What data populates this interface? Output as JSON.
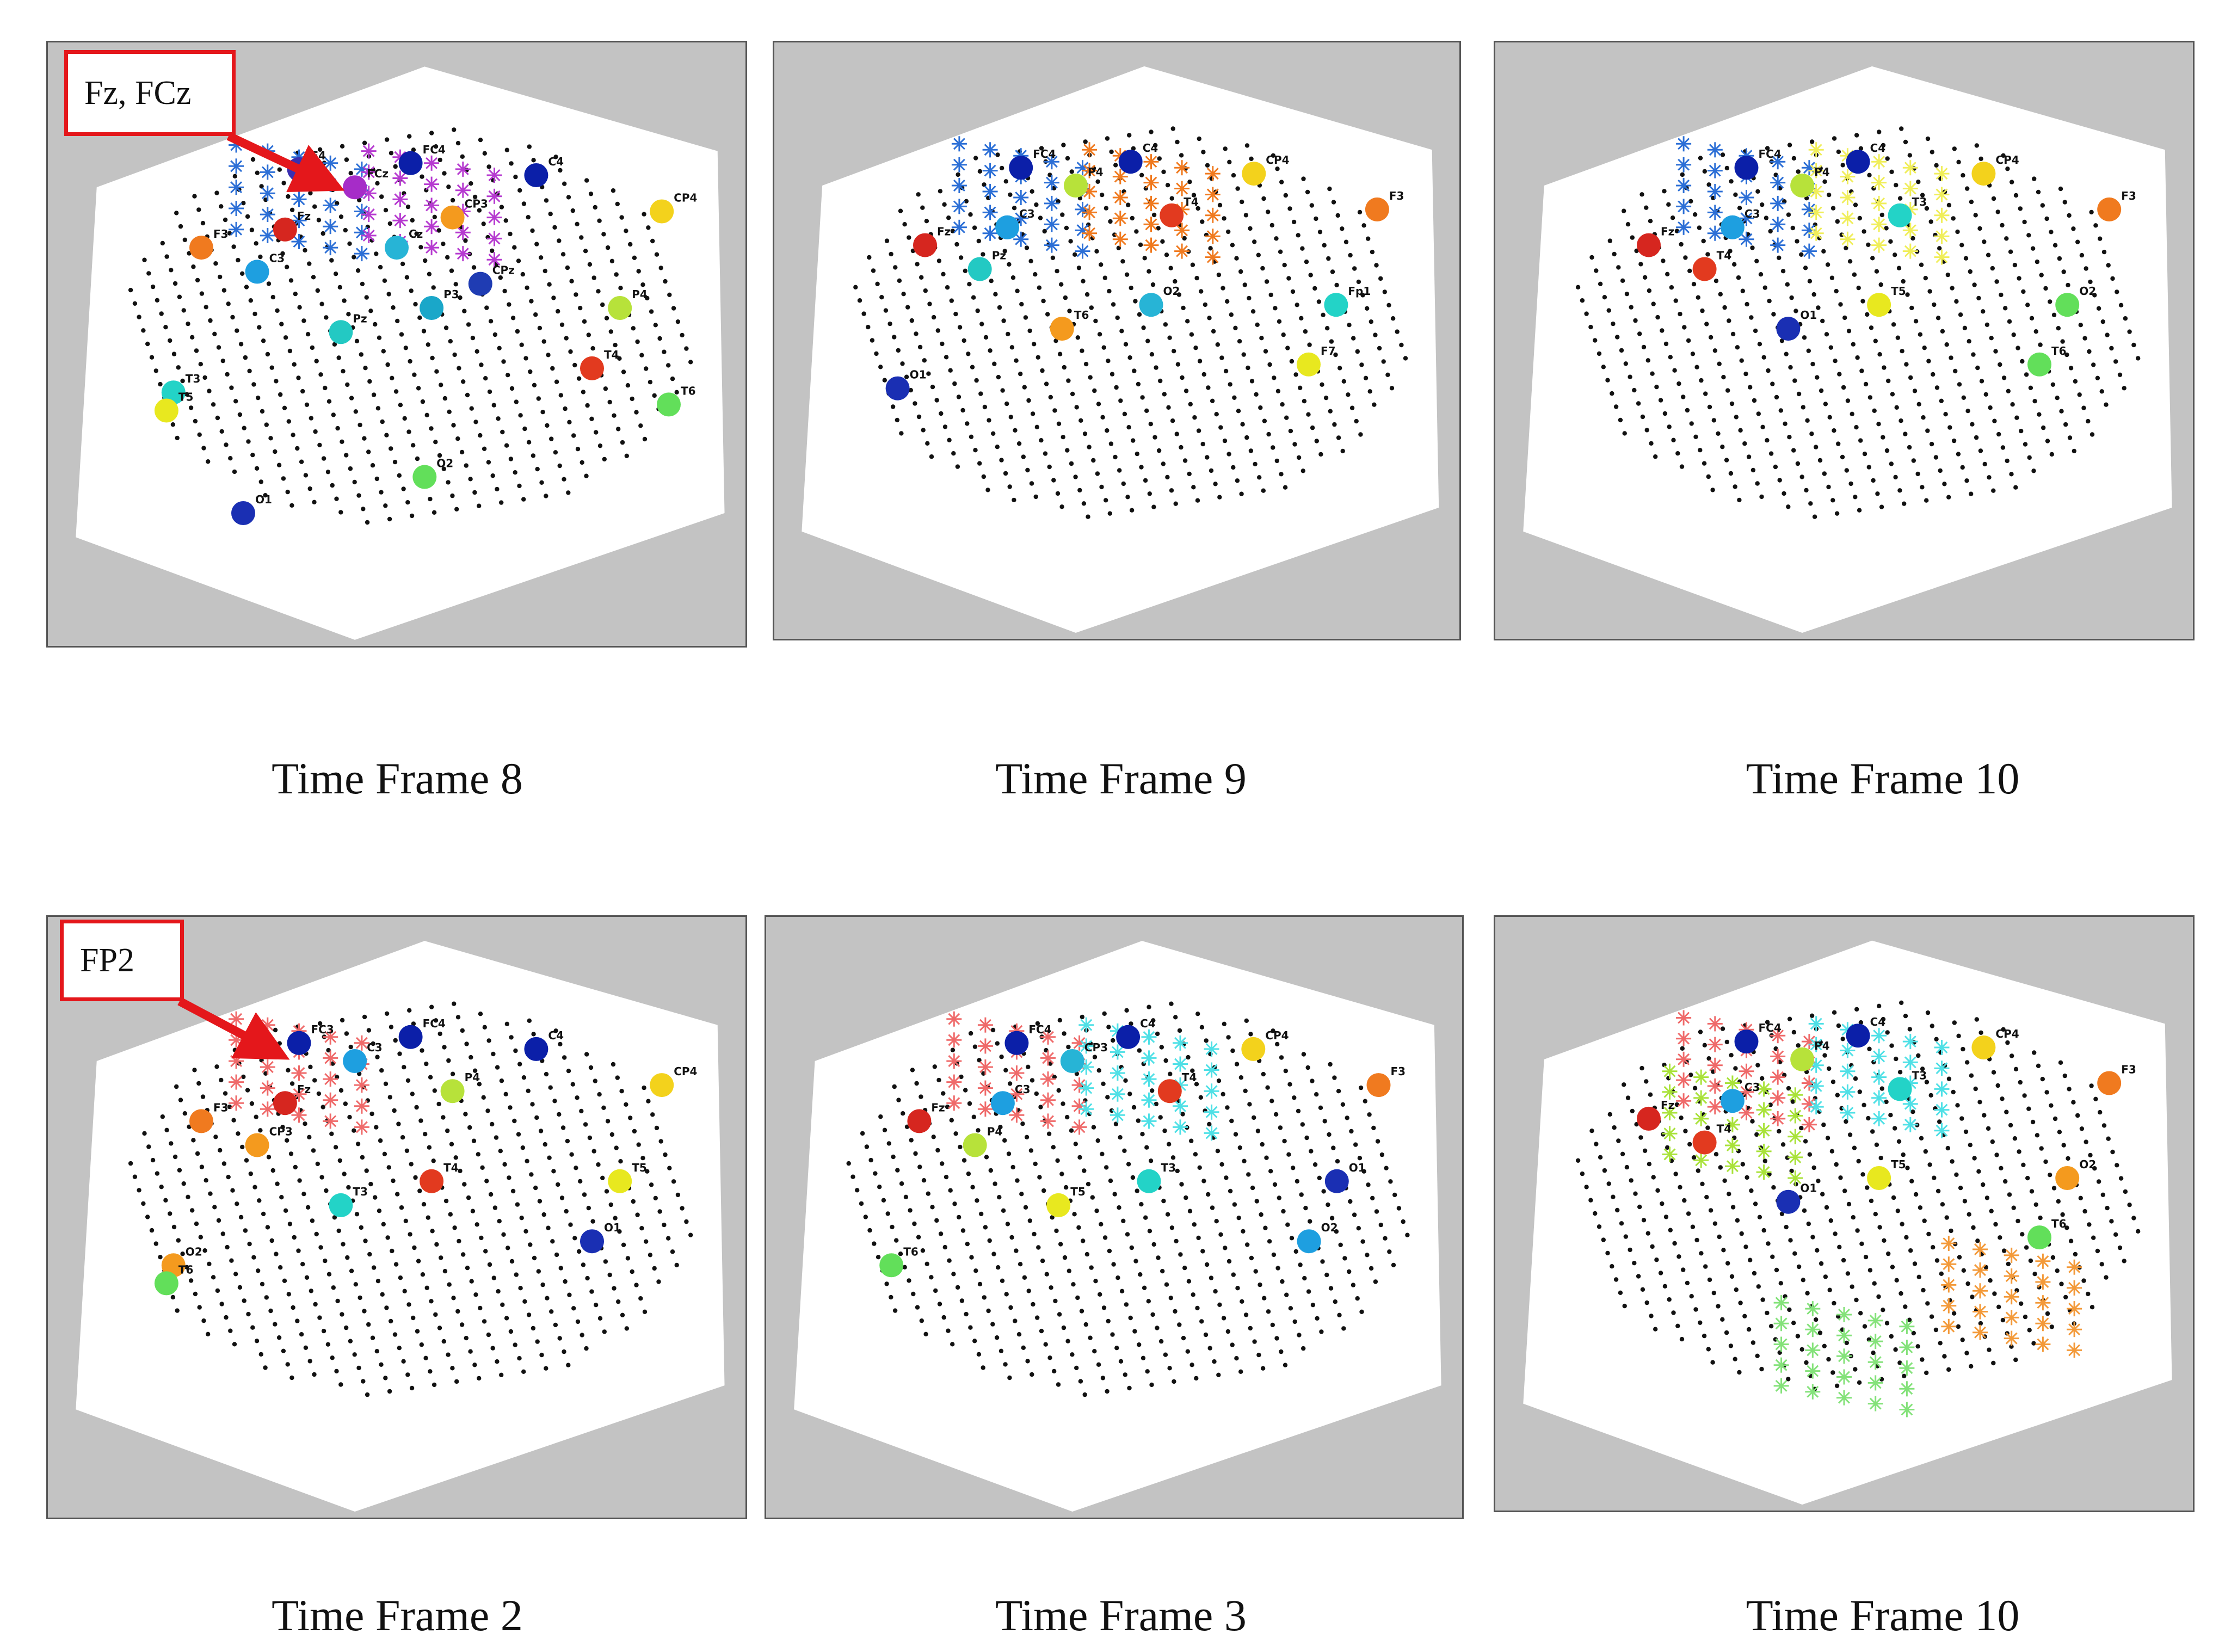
{
  "figure": {
    "captions": [
      "Time Frame 8",
      "Time Frame 9",
      "Time Frame 10",
      "Time Frame 2",
      "Time Frame 3",
      "Time Frame 10"
    ],
    "callouts": {
      "top_left": "Fz, FCz",
      "bottom_left": "FP2"
    },
    "arrow_color": "#e4171b",
    "background_panel_color": "#c3c3c3",
    "panels": [
      {
        "id": "top-1",
        "electrodes": [
          [
            "F4",
            "#3a2fb0"
          ],
          [
            "FC4",
            "#0b1fa8"
          ],
          [
            "C4",
            "#0b1fa8"
          ],
          [
            "CP4",
            "#f3d21c"
          ],
          [
            "F3",
            "#f07a1f"
          ],
          [
            "Fz",
            "#d6261f"
          ],
          [
            "FCz",
            "#a62cc8"
          ],
          [
            "C3",
            "#1e9fe0"
          ],
          [
            "CP3",
            "#f49a1e"
          ],
          [
            "P3",
            "#1aa7c9"
          ],
          [
            "Pz",
            "#23c9c3"
          ],
          [
            "P4",
            "#b7e23a"
          ],
          [
            "T4",
            "#e23a1f"
          ],
          [
            "T3",
            "#23d3c7"
          ],
          [
            "T5",
            "#e8e81f"
          ],
          [
            "O1",
            "#1a2fb3"
          ],
          [
            "O2",
            "#62df5a"
          ],
          [
            "Cz",
            "#27b4d6"
          ],
          [
            "T6",
            "#62df5a"
          ],
          [
            "CPz",
            "#1f3cb3"
          ]
        ],
        "clusters": [
          [
            "#2c6fd6"
          ],
          [
            "#b63ad0"
          ]
        ]
      },
      {
        "id": "top-2",
        "electrodes": [
          [
            "FC4",
            "#0b1fa8"
          ],
          [
            "C4",
            "#0b1fa8"
          ],
          [
            "CP4",
            "#f3d21c"
          ],
          [
            "F3",
            "#f07a1f"
          ],
          [
            "Fz",
            "#d6261f"
          ],
          [
            "C3",
            "#1e9fe0"
          ],
          [
            "P4",
            "#b7e23a"
          ],
          [
            "Pz",
            "#23c9c3"
          ],
          [
            "T4",
            "#e23a1f"
          ],
          [
            "O2",
            "#27b4d6"
          ],
          [
            "T6",
            "#f49a1e"
          ],
          [
            "Fp1",
            "#23d3c7"
          ],
          [
            "F7",
            "#e8e81f"
          ],
          [
            "O1",
            "#1a2fb3"
          ]
        ],
        "clusters": [
          [
            "#2c6fd6"
          ],
          [
            "#f07a1f"
          ]
        ]
      },
      {
        "id": "top-3",
        "electrodes": [
          [
            "FC4",
            "#0b1fa8"
          ],
          [
            "C4",
            "#0b1fa8"
          ],
          [
            "CP4",
            "#f3d21c"
          ],
          [
            "F3",
            "#f07a1f"
          ],
          [
            "Fz",
            "#d6261f"
          ],
          [
            "C3",
            "#1e9fe0"
          ],
          [
            "P4",
            "#b7e23a"
          ],
          [
            "T4",
            "#e23a1f"
          ],
          [
            "T3",
            "#23d3c7"
          ],
          [
            "T5",
            "#e8e81f"
          ],
          [
            "O1",
            "#1a2fb3"
          ],
          [
            "O2",
            "#62df5a"
          ],
          [
            "T6",
            "#62df5a"
          ]
        ],
        "clusters": [
          [
            "#2c6fd6"
          ],
          [
            "#f0ee5a"
          ]
        ]
      },
      {
        "id": "bottom-1",
        "electrodes": [
          [
            "FC3",
            "#0b1fa8"
          ],
          [
            "FC4",
            "#0b1fa8"
          ],
          [
            "C4",
            "#0b1fa8"
          ],
          [
            "CP4",
            "#f3d21c"
          ],
          [
            "F3",
            "#f07a1f"
          ],
          [
            "Fz",
            "#d6261f"
          ],
          [
            "C3",
            "#1e9fe0"
          ],
          [
            "CP3",
            "#f49a1e"
          ],
          [
            "P4",
            "#b7e23a"
          ],
          [
            "T4",
            "#e23a1f"
          ],
          [
            "T3",
            "#23d3c7"
          ],
          [
            "T5",
            "#e8e81f"
          ],
          [
            "O1",
            "#1a2fb3"
          ],
          [
            "O2",
            "#f49a1e"
          ],
          [
            "T6",
            "#62df5a"
          ]
        ],
        "clusters": [
          [
            "#ef6a6a"
          ]
        ]
      },
      {
        "id": "bottom-2",
        "electrodes": [
          [
            "FC4",
            "#0b1fa8"
          ],
          [
            "C4",
            "#0b1fa8"
          ],
          [
            "CP4",
            "#f3d21c"
          ],
          [
            "F3",
            "#f07a1f"
          ],
          [
            "Fz",
            "#d6261f"
          ],
          [
            "C3",
            "#1e9fe0"
          ],
          [
            "CP3",
            "#27b4d6"
          ],
          [
            "P4",
            "#b7e23a"
          ],
          [
            "T4",
            "#e23a1f"
          ],
          [
            "T3",
            "#23d3c7"
          ],
          [
            "T5",
            "#e8e81f"
          ],
          [
            "O1",
            "#1a2fb3"
          ],
          [
            "O2",
            "#1e9fe0"
          ],
          [
            "T6",
            "#62df5a"
          ]
        ],
        "clusters": [
          [
            "#ef6a6a"
          ],
          [
            "#4fe0e6"
          ]
        ]
      },
      {
        "id": "bottom-3",
        "electrodes": [
          [
            "FC4",
            "#0b1fa8"
          ],
          [
            "C4",
            "#0b1fa8"
          ],
          [
            "CP4",
            "#f3d21c"
          ],
          [
            "F3",
            "#f07a1f"
          ],
          [
            "Fz",
            "#d6261f"
          ],
          [
            "C3",
            "#1e9fe0"
          ],
          [
            "P4",
            "#b7e23a"
          ],
          [
            "T4",
            "#e23a1f"
          ],
          [
            "T3",
            "#23d3c7"
          ],
          [
            "T5",
            "#e8e81f"
          ],
          [
            "O1",
            "#1a2fb3"
          ],
          [
            "O2",
            "#f49a1e"
          ],
          [
            "T6",
            "#62df5a"
          ]
        ],
        "clusters": [
          [
            "#ef6a6a"
          ],
          [
            "#4fe0e6"
          ],
          [
            "#a9e23a"
          ],
          [
            "#f39a3a"
          ],
          [
            "#84e27a"
          ]
        ]
      }
    ]
  }
}
